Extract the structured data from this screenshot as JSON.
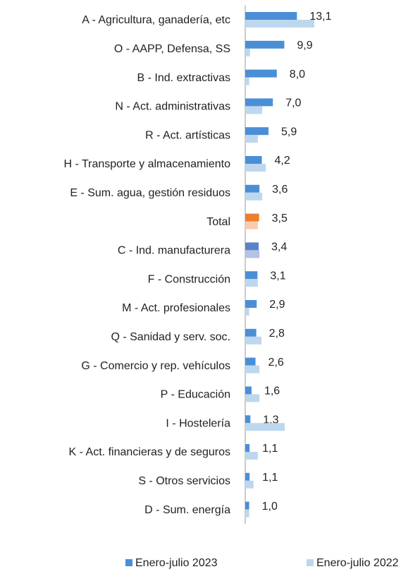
{
  "chart_data": {
    "type": "bar",
    "orientation": "horizontal",
    "categories": [
      "A - Agricultura, ganadería, etc",
      "O - AAPP, Defensa, SS",
      "B - Ind. extractivas",
      "N - Act. administrativas",
      "R - Act. artísticas",
      "H - Transporte y almacenamiento",
      "E - Sum. agua, gestión residuos",
      "Total",
      "C - Ind. manufacturera",
      "F - Construcción",
      "M - Act. profesionales",
      "Q - Sanidad y serv. soc.",
      "G - Comercio y rep. vehículos",
      "P - Educación",
      "I - Hostelería",
      "K - Act. financieras y de seguros",
      "S - Otros servicios",
      "D - Sum. energía"
    ],
    "series": [
      {
        "name": "Enero-julio 2023",
        "color": "#4a8fd6",
        "colors": [
          "#4a8fd6",
          "#4a8fd6",
          "#4a8fd6",
          "#4a8fd6",
          "#4a8fd6",
          "#4a8fd6",
          "#4a8fd6",
          "#ed7d31",
          "#5b82c9",
          "#4a8fd6",
          "#4a8fd6",
          "#4a8fd6",
          "#4a8fd6",
          "#4a8fd6",
          "#4a8fd6",
          "#4a8fd6",
          "#4a8fd6",
          "#4a8fd6"
        ],
        "values": [
          13.1,
          9.9,
          8.0,
          7.0,
          5.9,
          4.2,
          3.6,
          3.5,
          3.4,
          3.1,
          2.9,
          2.8,
          2.6,
          1.6,
          1.3,
          1.1,
          1.1,
          1.0
        ],
        "value_labels": [
          "13,1",
          "9,9",
          "8,0",
          "7,0",
          "5,9",
          "4,2",
          "3,6",
          "3,5",
          "3,4",
          "3,1",
          "2,9",
          "2,8",
          "2,6",
          "1,6",
          "1,3",
          "1,1",
          "1,1",
          "1,0"
        ]
      },
      {
        "name": "Enero-julio 2022",
        "color": "#bdd7ee",
        "colors": [
          "#bdd7ee",
          "#bdd7ee",
          "#bdd7ee",
          "#bdd7ee",
          "#bdd7ee",
          "#bdd7ee",
          "#bdd7ee",
          "#f8cbad",
          "#b4c2e6",
          "#bdd7ee",
          "#bdd7ee",
          "#bdd7ee",
          "#bdd7ee",
          "#bdd7ee",
          "#bdd7ee",
          "#bdd7ee",
          "#bdd7ee",
          "#bdd7ee"
        ],
        "values": [
          17.5,
          1.2,
          1.0,
          4.3,
          3.2,
          5.2,
          4.3,
          3.2,
          3.6,
          3.2,
          1.0,
          4.1,
          3.6,
          3.6,
          10.0,
          3.2,
          2.1,
          1.0
        ]
      }
    ],
    "xlim": [
      0,
      20
    ]
  }
}
